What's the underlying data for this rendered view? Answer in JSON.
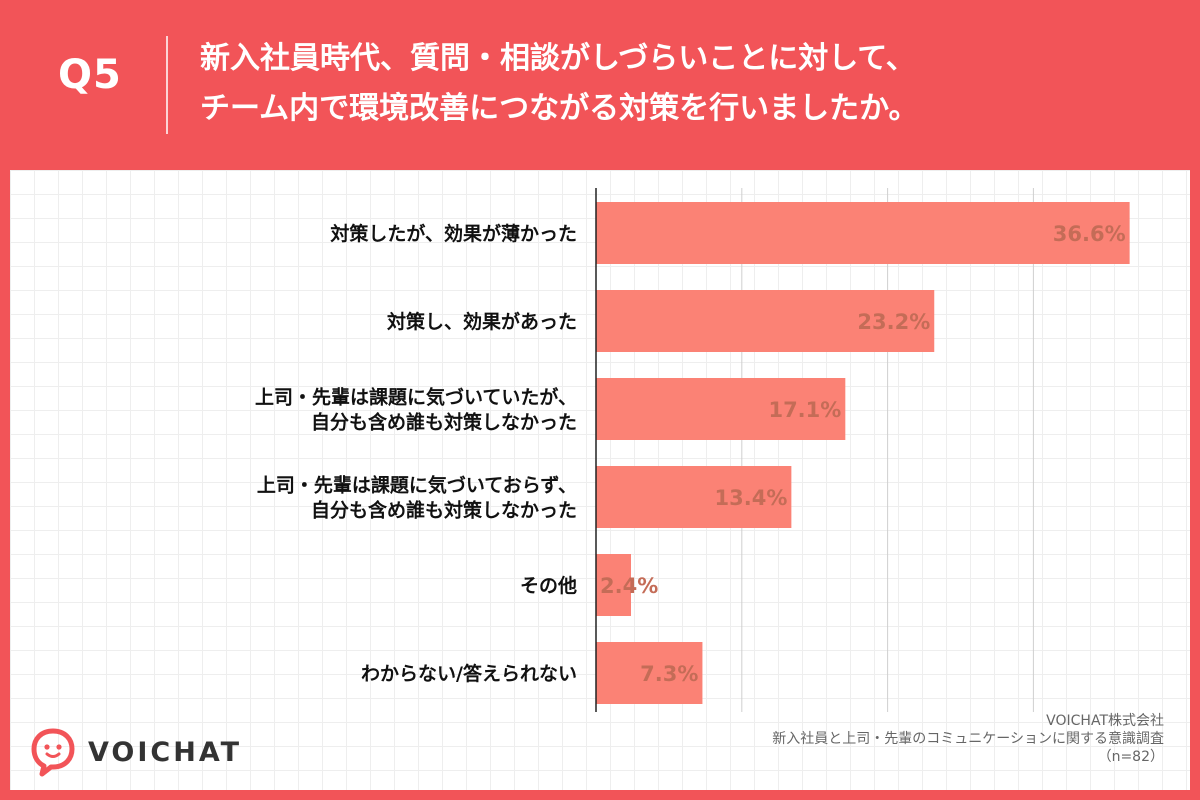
{
  "header": {
    "q_label": "Q5",
    "title_line1": "新入社員時代、質問・相談がしづらいことに対して、",
    "title_line2": "チーム内で環境改善につながる対策を行いましたか。"
  },
  "chart_data": {
    "type": "bar",
    "orientation": "horizontal",
    "categories": [
      [
        "対策したが、効果が薄かった"
      ],
      [
        "対策し、効果があった"
      ],
      [
        "上司・先輩は課題に気づいていたが、",
        "自分も含め誰も対策しなかった"
      ],
      [
        "上司・先輩は課題に気づいておらず、",
        "自分も含め誰も対策しなかった"
      ],
      [
        "その他"
      ],
      [
        "わからない/答えられない"
      ]
    ],
    "values": [
      36.6,
      23.2,
      17.1,
      13.4,
      2.4,
      7.3
    ],
    "value_labels": [
      "36.6%",
      "23.2%",
      "17.1%",
      "13.4%",
      "2.4%",
      "7.3%"
    ],
    "xlim": [
      0,
      40
    ],
    "gridlines_at": [
      10,
      20,
      30
    ],
    "bar_color": "#fb8275",
    "value_label_color": "#c46c57",
    "grid": true
  },
  "brand": {
    "name": "VOICHAT",
    "color": "#f25458",
    "icon": "speech-bubble-face-icon"
  },
  "source": {
    "company": "VOICHAT株式会社",
    "survey": "新入社員と上司・先輩のコミュニケーションに関する意識調査",
    "sample": "（n=82）"
  }
}
